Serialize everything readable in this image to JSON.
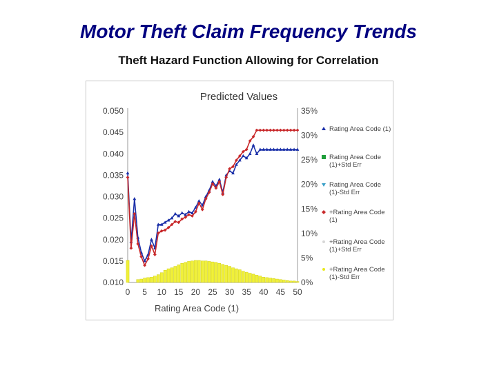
{
  "slide": {
    "title": "Motor Theft Claim Frequency Trends",
    "subtitle": "Theft Hazard Function Allowing for Correlation"
  },
  "chart_data": {
    "type": "line",
    "title": "Predicted Values",
    "xlabel": "Rating Area Code (1)",
    "xlim": [
      0,
      50
    ],
    "x_ticks": [
      "0",
      "5",
      "10",
      "15",
      "20",
      "25",
      "30",
      "35",
      "40",
      "45",
      "50"
    ],
    "ylim_left": [
      0.01,
      0.05
    ],
    "y_ticks_left": [
      "0.050",
      "0.045",
      "0.040",
      "0.035",
      "0.030",
      "0.025",
      "0.020",
      "0.015",
      "0.010"
    ],
    "ylim_right": [
      0,
      35
    ],
    "y_ticks_right": [
      "35%",
      "30%",
      "25%",
      "20%",
      "15%",
      "10%",
      "5%",
      "0%"
    ],
    "legend_position": "right",
    "legend": [
      {
        "label": "Rating Area Code (1)",
        "color": "#1a2fa8",
        "marker": "triangle-up"
      },
      {
        "label": "Rating Area Code (1)+Std Err",
        "color": "#1f9e3a",
        "marker": "square"
      },
      {
        "label": "Rating Area Code (1)-Std Err",
        "color": "#3aa0c8",
        "marker": "triangle-down"
      },
      {
        "label": "+Rating Area Code (1)",
        "color": "#c8282a",
        "marker": "diamond"
      },
      {
        "label": "+Rating Area Code (1)+Std Err",
        "color": "#d7d7d7",
        "marker": "dot"
      },
      {
        "label": "+Rating Area Code (1)-Std Err",
        "color": "#e8e81a",
        "marker": "dot"
      }
    ],
    "x": [
      0,
      1,
      2,
      3,
      4,
      5,
      6,
      7,
      8,
      9,
      10,
      11,
      12,
      13,
      14,
      15,
      16,
      17,
      18,
      19,
      20,
      21,
      22,
      23,
      24,
      25,
      26,
      27,
      28,
      29,
      30,
      31,
      32,
      33,
      34,
      35,
      36,
      37,
      38,
      39,
      40,
      41,
      42,
      43,
      44,
      45,
      46,
      47,
      48,
      49,
      50
    ],
    "series": [
      {
        "name": "Rating Area Code (1)",
        "axis": "left",
        "color": "#1a2fa8",
        "marker": "triangle",
        "values": [
          0.0355,
          0.0195,
          0.0295,
          0.0205,
          0.017,
          0.015,
          0.0165,
          0.02,
          0.018,
          0.0235,
          0.0235,
          0.024,
          0.0245,
          0.025,
          0.026,
          0.0255,
          0.0262,
          0.0258,
          0.0265,
          0.0262,
          0.0275,
          0.029,
          0.028,
          0.03,
          0.0315,
          0.0335,
          0.0325,
          0.034,
          0.031,
          0.035,
          0.036,
          0.0355,
          0.0375,
          0.0385,
          0.0395,
          0.039,
          0.04,
          0.042,
          0.04,
          0.041,
          0.041,
          0.041,
          0.041,
          0.041,
          0.041,
          0.041,
          0.041,
          0.041,
          0.041,
          0.041,
          0.041
        ]
      },
      {
        "name": "+Rating Area Code (1)",
        "axis": "left",
        "color": "#c8282a",
        "marker": "diamond",
        "values": [
          0.0345,
          0.018,
          0.026,
          0.019,
          0.016,
          0.014,
          0.0155,
          0.0185,
          0.0165,
          0.0215,
          0.022,
          0.0222,
          0.0228,
          0.0235,
          0.0242,
          0.024,
          0.0248,
          0.0252,
          0.0258,
          0.0255,
          0.0265,
          0.0285,
          0.027,
          0.0295,
          0.031,
          0.033,
          0.032,
          0.0335,
          0.0305,
          0.0345,
          0.0365,
          0.037,
          0.0385,
          0.0395,
          0.0405,
          0.041,
          0.043,
          0.044,
          0.0455,
          0.0455,
          0.0455,
          0.0455,
          0.0455,
          0.0455,
          0.0455,
          0.0455,
          0.0455,
          0.0455,
          0.0455,
          0.0455,
          0.0455
        ]
      },
      {
        "name": "+Rating Area Code (1)-Std Err",
        "type": "bar",
        "axis": "right",
        "color": "#f0f03a",
        "values": [
          4.5,
          0,
          0,
          0.6,
          0.7,
          0.9,
          1.0,
          1.1,
          1.3,
          1.6,
          2.0,
          2.5,
          2.8,
          3.0,
          3.3,
          3.6,
          3.9,
          4.1,
          4.3,
          4.4,
          4.5,
          4.5,
          4.4,
          4.4,
          4.3,
          4.2,
          4.1,
          3.9,
          3.7,
          3.5,
          3.3,
          3.0,
          2.8,
          2.6,
          2.3,
          2.1,
          1.9,
          1.7,
          1.5,
          1.3,
          1.1,
          1.0,
          0.9,
          0.8,
          0.7,
          0.6,
          0.5,
          0.4,
          0.3,
          0.3,
          0.2
        ]
      }
    ]
  }
}
